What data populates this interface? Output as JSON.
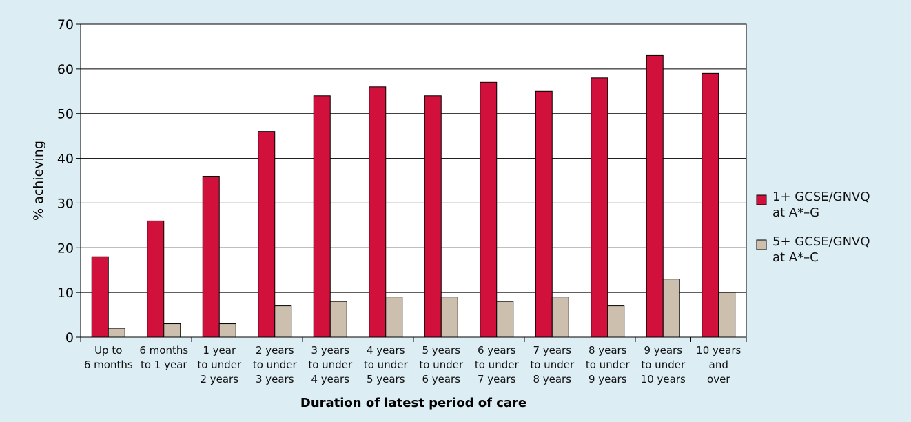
{
  "chart_data": {
    "type": "bar",
    "x_label": "Duration of latest period of care",
    "y_label": "% achieving",
    "categories": [
      "Up to\n6 months",
      "6 months\nto 1 year",
      "1 year\nto under\n2 years",
      "2 years\nto under\n3 years",
      "3 years\nto under\n4 years",
      "4 years\nto under\n5 years",
      "5 years\nto under\n6 years",
      "6 years\nto under\n7 years",
      "7 years\nto under\n8 years",
      "8 years\nto under\n9 years",
      "9 years\nto under\n10 years",
      "10 years\nand\nover"
    ],
    "series": [
      {
        "name": "1+ GCSE/GNVQ at A*–G",
        "color": "#d1103c",
        "values": [
          18,
          26,
          36,
          46,
          54,
          56,
          54,
          57,
          55,
          58,
          63,
          59
        ]
      },
      {
        "name": "5+ GCSE/GNVQ at A*–C",
        "color": "#cdbfae",
        "values": [
          2,
          3,
          3,
          7,
          8,
          9,
          9,
          8,
          9,
          7,
          13,
          10
        ]
      }
    ],
    "ylim": [
      0,
      70
    ],
    "yticks": [
      0,
      10,
      20,
      30,
      40,
      50,
      60,
      70
    ],
    "grid": true,
    "legend": "right"
  }
}
